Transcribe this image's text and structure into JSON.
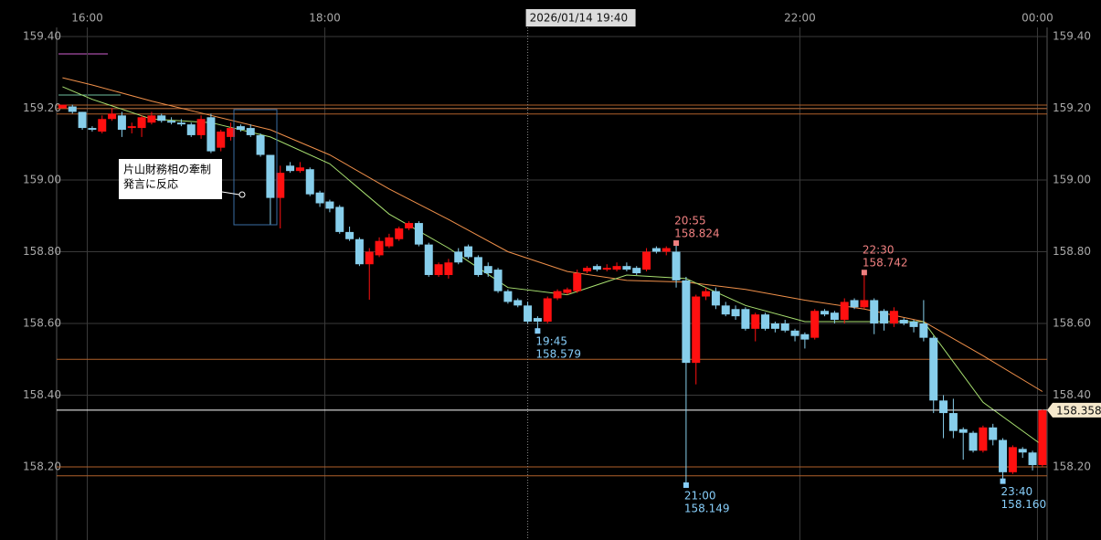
{
  "chart_data": {
    "type": "candlestick",
    "x": [
      "15:45",
      "15:50",
      "15:55",
      "16:00",
      "16:05",
      "16:10",
      "16:15",
      "16:20",
      "16:25",
      "16:30",
      "16:35",
      "16:40",
      "16:45",
      "16:50",
      "16:55",
      "17:00",
      "17:05",
      "17:10",
      "17:15",
      "17:20",
      "17:25",
      "17:30",
      "17:35",
      "17:40",
      "17:45",
      "17:50",
      "17:55",
      "18:00",
      "18:05",
      "18:10",
      "18:15",
      "18:20",
      "18:25",
      "18:30",
      "18:35",
      "18:40",
      "18:45",
      "18:50",
      "18:55",
      "19:00",
      "19:05",
      "19:10",
      "19:15",
      "19:20",
      "19:25",
      "19:30",
      "19:35",
      "19:40",
      "19:45",
      "19:50",
      "19:55",
      "20:00",
      "20:05",
      "20:10",
      "20:15",
      "20:20",
      "20:25",
      "20:30",
      "20:35",
      "20:40",
      "20:45",
      "20:50",
      "20:55",
      "21:00",
      "21:05",
      "21:10",
      "21:15",
      "21:20",
      "21:25",
      "21:30",
      "21:35",
      "21:40",
      "21:45",
      "21:50",
      "21:55",
      "22:00",
      "22:05",
      "22:10",
      "22:15",
      "22:20",
      "22:25",
      "22:30",
      "22:35",
      "22:40",
      "22:45",
      "22:50",
      "22:55",
      "23:00",
      "23:05",
      "23:10",
      "23:15",
      "23:20",
      "23:25",
      "23:30",
      "23:35",
      "23:40",
      "23:45",
      "23:50",
      "23:55",
      "00:00"
    ],
    "open": [
      159.2,
      159.205,
      159.19,
      159.145,
      159.135,
      159.17,
      159.18,
      159.145,
      159.145,
      159.16,
      159.18,
      159.165,
      159.16,
      159.155,
      159.125,
      159.175,
      159.09,
      159.12,
      159.15,
      159.145,
      159.125,
      159.07,
      158.95,
      159.04,
      159.025,
      159.03,
      158.965,
      158.94,
      158.925,
      158.855,
      158.835,
      158.765,
      158.79,
      158.815,
      158.835,
      158.865,
      158.88,
      158.82,
      158.735,
      158.735,
      158.8,
      158.815,
      158.785,
      158.76,
      158.75,
      158.69,
      158.665,
      158.65,
      158.615,
      158.605,
      158.67,
      158.685,
      158.69,
      158.745,
      158.76,
      158.75,
      158.75,
      158.76,
      158.755,
      158.75,
      158.81,
      158.8,
      158.8,
      158.72,
      158.49,
      158.675,
      158.69,
      158.65,
      158.64,
      158.64,
      158.585,
      158.625,
      158.6,
      158.6,
      158.58,
      158.57,
      158.56,
      158.635,
      158.63,
      158.61,
      158.665,
      158.645,
      158.665,
      158.635,
      158.6,
      158.61,
      158.605,
      158.6,
      158.56,
      158.385,
      158.35,
      158.305,
      158.295,
      158.245,
      158.31,
      158.275,
      158.185,
      158.25,
      158.24,
      158.205
    ],
    "high": [
      159.21,
      159.21,
      159.19,
      159.15,
      159.18,
      159.2,
      159.19,
      159.16,
      159.18,
      159.19,
      159.185,
      159.175,
      159.17,
      159.16,
      159.18,
      159.185,
      159.14,
      159.16,
      159.155,
      159.155,
      159.13,
      159.07,
      159.04,
      159.05,
      159.05,
      159.035,
      158.97,
      158.945,
      158.93,
      158.87,
      158.84,
      158.81,
      158.84,
      158.85,
      158.87,
      158.885,
      158.885,
      158.825,
      158.77,
      158.78,
      158.81,
      158.82,
      158.79,
      158.77,
      158.755,
      158.695,
      158.67,
      158.66,
      158.62,
      158.675,
      158.695,
      158.7,
      158.75,
      158.76,
      158.765,
      158.765,
      158.77,
      158.77,
      158.76,
      158.81,
      158.815,
      158.815,
      158.824,
      158.73,
      158.68,
      158.7,
      158.7,
      158.66,
      158.65,
      158.645,
      158.63,
      158.63,
      158.605,
      158.61,
      158.585,
      158.575,
      158.64,
      158.64,
      158.635,
      158.67,
      158.67,
      158.742,
      158.67,
      158.64,
      158.645,
      158.615,
      158.61,
      158.665,
      158.565,
      158.4,
      158.39,
      158.31,
      158.3,
      158.315,
      158.32,
      158.28,
      158.26,
      158.255,
      158.245,
      158.36
    ],
    "low": [
      159.2,
      159.185,
      159.14,
      159.135,
      159.13,
      159.165,
      159.12,
      159.13,
      159.12,
      159.155,
      159.16,
      159.155,
      159.15,
      159.12,
      159.115,
      159.075,
      159.08,
      159.11,
      159.135,
      159.12,
      159.065,
      158.875,
      158.865,
      159.02,
      159.02,
      158.955,
      158.925,
      158.91,
      158.85,
      158.83,
      158.76,
      158.666,
      158.785,
      158.81,
      158.83,
      158.86,
      158.815,
      158.73,
      158.73,
      158.725,
      158.765,
      158.78,
      158.73,
      158.73,
      158.685,
      158.655,
      158.645,
      158.6,
      158.579,
      158.6,
      158.665,
      158.68,
      158.685,
      158.74,
      158.745,
      158.745,
      158.745,
      158.745,
      158.735,
      158.745,
      158.795,
      158.79,
      158.7,
      158.149,
      158.43,
      158.665,
      158.64,
      158.62,
      158.61,
      158.58,
      158.55,
      158.58,
      158.575,
      158.575,
      158.55,
      158.53,
      158.555,
      158.62,
      158.6,
      158.6,
      158.64,
      158.64,
      158.57,
      158.58,
      158.59,
      158.595,
      158.575,
      158.55,
      158.35,
      158.28,
      158.28,
      158.22,
      158.24,
      158.24,
      158.26,
      158.16,
      158.18,
      158.225,
      158.19,
      158.2
    ],
    "close": [
      159.21,
      159.19,
      159.145,
      159.14,
      159.17,
      159.185,
      159.14,
      159.15,
      159.175,
      159.18,
      159.165,
      159.16,
      159.155,
      159.125,
      159.17,
      159.08,
      159.135,
      159.145,
      159.14,
      159.125,
      159.07,
      158.95,
      159.02,
      159.025,
      159.035,
      158.96,
      158.935,
      158.92,
      158.855,
      158.835,
      158.765,
      158.8,
      158.83,
      158.84,
      158.865,
      158.88,
      158.82,
      158.735,
      158.765,
      158.77,
      158.77,
      158.785,
      158.735,
      158.74,
      158.69,
      158.66,
      158.65,
      158.605,
      158.605,
      158.67,
      158.69,
      158.695,
      158.74,
      158.755,
      158.75,
      158.755,
      158.76,
      158.75,
      158.74,
      158.8,
      158.8,
      158.81,
      158.72,
      158.49,
      158.675,
      158.69,
      158.65,
      158.625,
      158.62,
      158.585,
      158.625,
      158.585,
      158.585,
      158.58,
      158.565,
      158.555,
      158.635,
      158.625,
      158.61,
      158.66,
      158.645,
      158.665,
      158.6,
      158.6,
      158.635,
      158.6,
      158.59,
      158.56,
      158.385,
      158.35,
      158.3,
      158.295,
      158.245,
      158.31,
      158.275,
      158.185,
      158.255,
      158.24,
      158.205,
      158.358
    ],
    "up_color": "#ff1010",
    "down_color": "#87ceeb",
    "series": [
      {
        "color": "#f0904a",
        "x": [
          "15:45",
          "16:00",
          "16:30",
          "17:00",
          "17:30",
          "18:00",
          "18:30",
          "19:00",
          "19:30",
          "20:00",
          "20:30",
          "21:00",
          "21:30",
          "22:00",
          "22:30",
          "23:00",
          "23:30",
          "00:00"
        ],
        "values": [
          159.285,
          159.265,
          159.22,
          159.18,
          159.14,
          159.07,
          158.975,
          158.89,
          158.8,
          158.745,
          158.72,
          158.715,
          158.695,
          158.665,
          158.64,
          158.605,
          158.51,
          158.41
        ]
      },
      {
        "color": "#a8e070",
        "x": [
          "15:45",
          "16:00",
          "16:30",
          "17:00",
          "17:30",
          "18:00",
          "18:30",
          "19:00",
          "19:30",
          "20:00",
          "20:30",
          "21:00",
          "21:30",
          "22:00",
          "22:30",
          "23:00",
          "23:30",
          "00:00"
        ],
        "values": [
          159.26,
          159.225,
          159.17,
          159.16,
          159.12,
          159.045,
          158.905,
          158.81,
          158.7,
          158.68,
          158.735,
          158.725,
          158.65,
          158.605,
          158.605,
          158.605,
          158.38,
          158.26
        ]
      }
    ],
    "ylim": [
      157.996,
      159.4255
    ],
    "yticks": [
      {
        "value": 159.4,
        "label": "159.40"
      },
      {
        "value": 159.2,
        "label": "159.20"
      },
      {
        "value": 159,
        "label": "159.00"
      },
      {
        "value": 158.8,
        "label": "158.80"
      },
      {
        "value": 158.6,
        "label": "158.60"
      },
      {
        "value": 158.4,
        "label": "158.40"
      },
      {
        "value": 158.2,
        "label": "158.20"
      }
    ],
    "xticks": [
      "16:00",
      "18:00",
      "22:00",
      "00:00"
    ],
    "grid": true,
    "levels": [
      {
        "value": 159.209,
        "color": "#b0602a"
      },
      {
        "value": 159.199,
        "color": "#b0602a"
      },
      {
        "value": 159.184,
        "color": "#b0602a"
      },
      {
        "value": 158.5,
        "color": "#b0602a"
      },
      {
        "value": 158.2,
        "color": "#b0602a"
      },
      {
        "value": 158.175,
        "color": "#b0602a"
      }
    ],
    "current_price": {
      "value": 158.358,
      "color": "#f5e8cc"
    },
    "crosshair": {
      "x": "19:40",
      "label": "2026/01/14 19:40"
    },
    "markers": [
      {
        "time": "19:45",
        "price": 158.579,
        "kind": "low"
      },
      {
        "time": "20:55",
        "price": 158.824,
        "kind": "high"
      },
      {
        "time": "21:00",
        "price": 158.149,
        "kind": "low"
      },
      {
        "time": "22:30",
        "price": 158.742,
        "kind": "high"
      },
      {
        "time": "23:40",
        "price": {
          "value": 158.16,
          "label": "158.160"
        },
        "kind": "low"
      }
    ],
    "callout": {
      "lines": [
        "片山財務相の牽制",
        "発言に反応"
      ]
    }
  }
}
